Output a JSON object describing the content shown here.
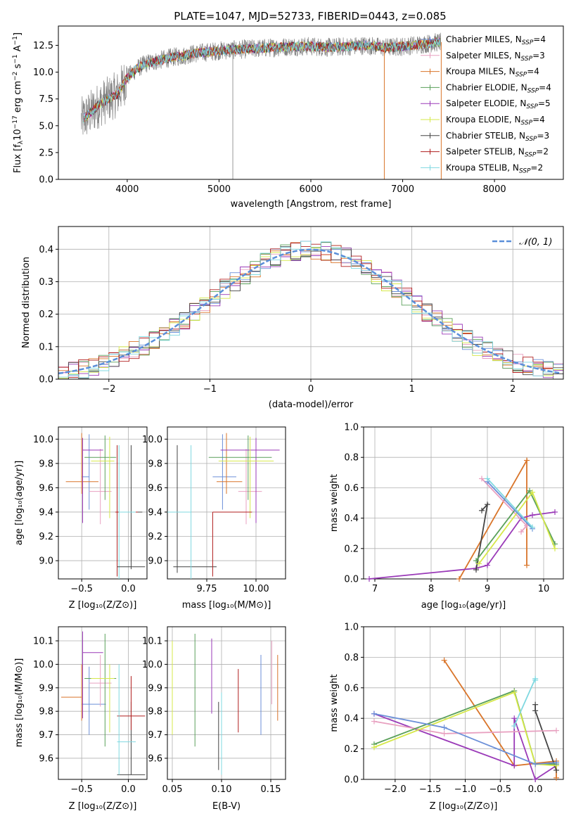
{
  "figure_title": "PLATE=1047, MJD=52733, FIBERID=0443, z=0.085",
  "chart_data": [
    {
      "type": "line",
      "name": "spectrum",
      "xlabel": "wavelength [Angstrom, rest frame]",
      "ylabel": "Flux [fλ10⁻¹⁷ erg cm⁻² s⁻¹ A⁻¹]",
      "xlim": [
        3250,
        8750
      ],
      "ylim": [
        0,
        14.3
      ],
      "xticks": [
        4000,
        5000,
        6000,
        7000,
        8000
      ],
      "yticks": [
        0.0,
        2.5,
        5.0,
        7.5,
        10.0,
        12.5
      ],
      "data_x": [
        3500,
        3600,
        3700,
        3800,
        3900,
        4000,
        4100,
        4200,
        4300,
        4400,
        4500,
        4600,
        4700,
        4800,
        4900,
        5000,
        5200,
        5400,
        5600,
        5800,
        6000,
        6200,
        6400,
        6600,
        6800,
        7000,
        7200,
        7400
      ],
      "data_y": [
        5.5,
        6.2,
        7.0,
        7.5,
        8.0,
        9.5,
        10.3,
        10.8,
        11.0,
        11.2,
        11.4,
        11.5,
        11.7,
        11.8,
        11.9,
        12.0,
        12.1,
        12.2,
        12.3,
        12.4,
        12.4,
        12.3,
        12.4,
        12.5,
        12.3,
        12.4,
        12.6,
        12.8
      ],
      "legend": [
        {
          "label": "Chabrier MILES, N",
          "sub": "SSP",
          "tail": "=4",
          "color": "#6b8fd8"
        },
        {
          "label": "Salpeter MILES, N",
          "sub": "SSP",
          "tail": "=3",
          "color": "#e8a0c0"
        },
        {
          "label": "Kroupa MILES, N",
          "sub": "SSP",
          "tail": "=4",
          "color": "#d9752a"
        },
        {
          "label": "Chabrier ELODIE, N",
          "sub": "SSP",
          "tail": "=4",
          "color": "#5aa05a"
        },
        {
          "label": "Salpeter ELODIE, N",
          "sub": "SSP",
          "tail": "=5",
          "color": "#9a3ab8"
        },
        {
          "label": "Kroupa ELODIE, N",
          "sub": "SSP",
          "tail": "=4",
          "color": "#d6e84a"
        },
        {
          "label": "Chabrier STELIB, N",
          "sub": "SSP",
          "tail": "=3",
          "color": "#444444"
        },
        {
          "label": "Salpeter STELIB, N",
          "sub": "SSP",
          "tail": "=2",
          "color": "#b01e1e"
        },
        {
          "label": "Kroupa STELIB, N",
          "sub": "SSP",
          "tail": "=2",
          "color": "#7fd8e0"
        }
      ]
    },
    {
      "type": "line",
      "name": "residual-histogram",
      "xlabel": "(data-model)/error",
      "ylabel": "Normed distribution",
      "xlim": [
        -2.5,
        2.5
      ],
      "ylim": [
        0,
        0.47
      ],
      "xticks": [
        -2,
        -1,
        0,
        1,
        2
      ],
      "xtick_labels": [
        "−2",
        "−1",
        "0",
        "1",
        "2"
      ],
      "yticks": [
        0.0,
        0.1,
        0.2,
        0.3,
        0.4
      ],
      "legend_label": "𝒩(0, 1)",
      "legend_color": "#5b8fd9"
    },
    {
      "type": "scatter",
      "name": "age-vs-Z",
      "xlabel": "Z [log₁₀(Z/Z⊙)]",
      "ylabel": "age  [log₁₀(age/yr)]",
      "xlim": [
        -0.75,
        0.2
      ],
      "ylim": [
        8.85,
        10.1
      ],
      "xticks": [
        -0.5,
        0.0
      ],
      "xtick_labels": [
        "−0.5",
        "0.0"
      ],
      "yticks": [
        9.0,
        9.2,
        9.4,
        9.6,
        9.8,
        10.0
      ]
    },
    {
      "type": "scatter",
      "name": "age-vs-mass",
      "xlabel": "mass [log₁₀(M/M⊙)]",
      "xlim": [
        9.55,
        10.15
      ],
      "ylim": [
        8.85,
        10.1
      ],
      "xticks": [
        9.75,
        10.0
      ],
      "xtick_labels": [
        "9.75",
        "10.00"
      ],
      "yticks": [
        9.0,
        9.2,
        9.4,
        9.6,
        9.8,
        10.0
      ]
    },
    {
      "type": "line",
      "name": "weight-vs-age",
      "xlabel": "age  [log₁₀(age/yr)]",
      "ylabel": "mass weight",
      "xlim": [
        6.8,
        10.35
      ],
      "ylim": [
        0,
        1.0
      ],
      "xticks": [
        7,
        8,
        9,
        10
      ],
      "yticks": [
        0.0,
        0.2,
        0.4,
        0.6,
        0.8,
        1.0
      ],
      "series": [
        {
          "color": "#d9752a",
          "points": [
            [
              8.5,
              0.0
            ],
            [
              9.7,
              0.78
            ],
            [
              9.7,
              0.09
            ]
          ]
        },
        {
          "color": "#9a3ab8",
          "points": [
            [
              6.9,
              0.0
            ],
            [
              8.8,
              0.07
            ],
            [
              9.0,
              0.09
            ],
            [
              9.6,
              0.4
            ],
            [
              9.8,
              0.42
            ],
            [
              10.2,
              0.44
            ]
          ]
        },
        {
          "color": "#444444",
          "points": [
            [
              8.9,
              0.45
            ],
            [
              9.0,
              0.49
            ],
            [
              8.8,
              0.06
            ]
          ]
        },
        {
          "color": "#e8a0c0",
          "points": [
            [
              8.9,
              0.66
            ],
            [
              9.7,
              0.35
            ],
            [
              9.6,
              0.31
            ]
          ]
        },
        {
          "color": "#5aa05a",
          "points": [
            [
              8.8,
              0.12
            ],
            [
              9.75,
              0.58
            ],
            [
              10.2,
              0.23
            ]
          ]
        },
        {
          "color": "#d6e84a",
          "points": [
            [
              8.85,
              0.1
            ],
            [
              9.8,
              0.57
            ],
            [
              10.2,
              0.2
            ]
          ]
        },
        {
          "color": "#6b8fd8",
          "points": [
            [
              9.0,
              0.64
            ],
            [
              9.8,
              0.33
            ]
          ]
        },
        {
          "color": "#7fd8e0",
          "points": [
            [
              9.0,
              0.66
            ],
            [
              9.8,
              0.34
            ]
          ]
        }
      ]
    },
    {
      "type": "scatter",
      "name": "mass-vs-Z",
      "xlabel": "Z [log₁₀(Z/Z⊙)]",
      "ylabel": "mass [log₁₀(M/M⊙)]",
      "xlim": [
        -0.75,
        0.2
      ],
      "ylim": [
        9.51,
        10.16
      ],
      "xticks": [
        -0.5,
        0.0
      ],
      "xtick_labels": [
        "−0.5",
        "0.0"
      ],
      "yticks": [
        9.6,
        9.7,
        9.8,
        9.9,
        10.0,
        10.1
      ]
    },
    {
      "type": "scatter",
      "name": "mass-vs-EBV",
      "xlabel": "E(B-V)",
      "xlim": [
        0.045,
        0.165
      ],
      "ylim": [
        9.51,
        10.16
      ],
      "xticks": [
        0.05,
        0.1,
        0.15
      ],
      "xtick_labels": [
        "0.05",
        "0.10",
        "0.15"
      ],
      "yticks": [
        9.6,
        9.7,
        9.8,
        9.9,
        10.0,
        10.1
      ]
    },
    {
      "type": "line",
      "name": "weight-vs-Z",
      "xlabel": "Z [log₁₀(Z/Z⊙)]",
      "ylabel": "mass weight",
      "xlim": [
        -2.45,
        0.4
      ],
      "ylim": [
        0,
        1.0
      ],
      "xticks": [
        -2.0,
        -1.5,
        -1.0,
        -0.5,
        0.0
      ],
      "xtick_labels": [
        "−2.0",
        "−1.5",
        "−1.0",
        "−0.5",
        "0.0"
      ],
      "yticks": [
        0.0,
        0.2,
        0.4,
        0.6,
        0.8,
        1.0
      ],
      "series": [
        {
          "color": "#d9752a",
          "points": [
            [
              -1.3,
              0.78
            ],
            [
              -0.3,
              0.09
            ],
            [
              0.3,
              0.12
            ],
            [
              0.3,
              0.01
            ]
          ]
        },
        {
          "color": "#9a3ab8",
          "points": [
            [
              -2.3,
              0.43
            ],
            [
              -0.3,
              0.09
            ],
            [
              -0.3,
              0.4
            ],
            [
              0.0,
              0.0
            ],
            [
              0.3,
              0.09
            ]
          ]
        },
        {
          "color": "#444444",
          "points": [
            [
              0.0,
              0.49
            ],
            [
              0.0,
              0.45
            ],
            [
              0.3,
              0.06
            ]
          ]
        },
        {
          "color": "#e8a0c0",
          "points": [
            [
              -2.3,
              0.38
            ],
            [
              -1.3,
              0.3
            ],
            [
              0.3,
              0.32
            ]
          ]
        },
        {
          "color": "#5aa05a",
          "points": [
            [
              -2.3,
              0.23
            ],
            [
              -0.3,
              0.58
            ],
            [
              0.0,
              0.1
            ],
            [
              0.3,
              0.1
            ]
          ]
        },
        {
          "color": "#d6e84a",
          "points": [
            [
              -2.3,
              0.21
            ],
            [
              -0.3,
              0.57
            ],
            [
              0.0,
              0.1
            ],
            [
              0.3,
              0.09
            ]
          ]
        },
        {
          "color": "#6b8fd8",
          "points": [
            [
              -2.3,
              0.43
            ],
            [
              -1.3,
              0.34
            ],
            [
              0.0,
              0.1
            ],
            [
              0.3,
              0.11
            ]
          ]
        },
        {
          "color": "#7fd8e0",
          "points": [
            [
              -0.3,
              0.35
            ],
            [
              0.0,
              0.66
            ],
            [
              0.0,
              0.65
            ]
          ]
        }
      ]
    }
  ]
}
